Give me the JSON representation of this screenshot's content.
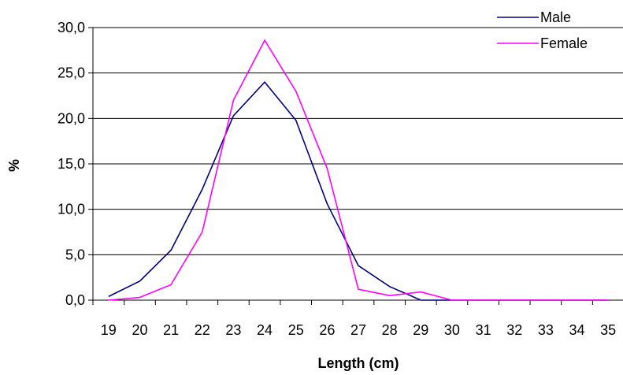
{
  "chart_data": {
    "type": "line",
    "xlabel": "Length (cm)",
    "ylabel": "%",
    "ylim": [
      0,
      30
    ],
    "ytick_step": 5,
    "ytick_labels": [
      "0,0",
      "5,0",
      "10,0",
      "15,0",
      "20,0",
      "25,0",
      "30,0"
    ],
    "categories": [
      "19",
      "20",
      "21",
      "22",
      "23",
      "24",
      "25",
      "26",
      "27",
      "28",
      "29",
      "30",
      "31",
      "32",
      "33",
      "34",
      "35"
    ],
    "grid": "horizontal",
    "legend_position": "top-right",
    "series": [
      {
        "name": "Male",
        "color": "#000080",
        "values": [
          0.4,
          2.1,
          5.5,
          12.2,
          20.3,
          24.0,
          19.8,
          10.6,
          3.8,
          1.5,
          0.0,
          0.0,
          0.0,
          0.0,
          0.0,
          0.0,
          0.0
        ]
      },
      {
        "name": "Female",
        "color": "#ff00ff",
        "values": [
          0.0,
          0.3,
          1.7,
          7.5,
          22.0,
          28.6,
          23.0,
          14.5,
          1.2,
          0.5,
          0.9,
          0.0,
          0.0,
          0.0,
          0.0,
          0.0,
          0.0
        ]
      }
    ]
  }
}
